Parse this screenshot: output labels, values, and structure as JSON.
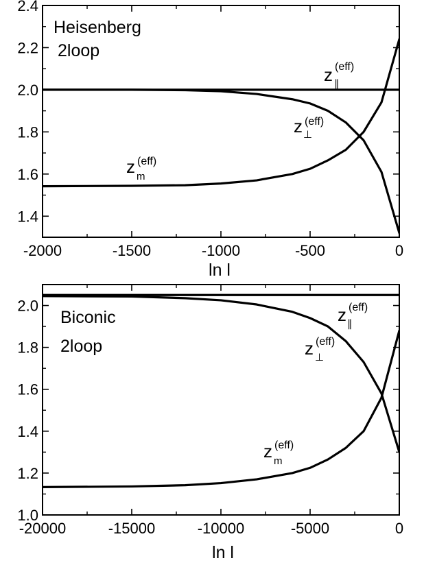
{
  "chart_data": [
    {
      "type": "line",
      "panel_text": [
        "Heisenberg",
        "2loop"
      ],
      "xlabel": "ln l",
      "ylabel": "",
      "xlim": [
        -2000,
        0
      ],
      "ylim": [
        1.3,
        2.4
      ],
      "x_ticks": [
        -2000,
        -1500,
        -1000,
        -500,
        0
      ],
      "x_tick_labels": [
        "-2000",
        "-1500",
        "-1000",
        "-500",
        "0"
      ],
      "y_ticks": [
        1.4,
        1.6,
        1.8,
        2.0,
        2.2,
        2.4
      ],
      "y_tick_labels": [
        "1.4",
        "1.6",
        "1.8",
        "2.0",
        "2.2",
        "2.4"
      ],
      "grid": false,
      "series": [
        {
          "name": "z_∥^(eff)",
          "x": [
            -2000,
            -1500,
            -1000,
            -500,
            0
          ],
          "y": [
            2.0,
            2.0,
            2.0,
            2.0,
            2.0
          ]
        },
        {
          "name": "z_⊥^(eff)",
          "x": [
            -2000,
            -1500,
            -1200,
            -1000,
            -800,
            -600,
            -500,
            -400,
            -300,
            -200,
            -100,
            0
          ],
          "y": [
            2.0,
            2.0,
            1.998,
            1.993,
            1.98,
            1.955,
            1.935,
            1.9,
            1.845,
            1.76,
            1.61,
            1.32
          ]
        },
        {
          "name": "z_m^(eff)",
          "x": [
            -2000,
            -1500,
            -1200,
            -1000,
            -800,
            -600,
            -500,
            -400,
            -300,
            -200,
            -100,
            0
          ],
          "y": [
            1.542,
            1.544,
            1.547,
            1.555,
            1.57,
            1.6,
            1.625,
            1.665,
            1.715,
            1.8,
            1.94,
            2.24
          ]
        }
      ],
      "annotations": [
        {
          "base": "z",
          "sup": "(eff)",
          "sub": "∥"
        },
        {
          "base": "z",
          "sup": "(eff)",
          "sub": "⊥"
        },
        {
          "base": "z",
          "sup": "(eff)",
          "sub": "m"
        }
      ]
    },
    {
      "type": "line",
      "panel_text": [
        "Biconic",
        "2loop"
      ],
      "xlabel": "ln l",
      "ylabel": "",
      "xlim": [
        -20000,
        0
      ],
      "ylim": [
        1.0,
        2.1
      ],
      "x_ticks": [
        -20000,
        -15000,
        -10000,
        -5000,
        0
      ],
      "x_tick_labels": [
        "-20000",
        "-15000",
        "-10000",
        "-5000",
        "0"
      ],
      "y_ticks": [
        1.0,
        1.2,
        1.4,
        1.6,
        1.8,
        2.0
      ],
      "y_tick_labels": [
        "1.0",
        "1.2",
        "1.4",
        "1.6",
        "1.8",
        "2.0"
      ],
      "grid": false,
      "series": [
        {
          "name": "z_∥^(eff)",
          "x": [
            -20000,
            -15000,
            -10000,
            -5000,
            0
          ],
          "y": [
            2.05,
            2.05,
            2.05,
            2.05,
            2.05
          ]
        },
        {
          "name": "z_⊥^(eff)",
          "x": [
            -20000,
            -15000,
            -12000,
            -10000,
            -8000,
            -6000,
            -5000,
            -4000,
            -3000,
            -2000,
            -1000,
            0
          ],
          "y": [
            2.045,
            2.043,
            2.035,
            2.025,
            2.005,
            1.97,
            1.94,
            1.9,
            1.83,
            1.73,
            1.58,
            1.3
          ]
        },
        {
          "name": "z_m^(eff)",
          "x": [
            -20000,
            -15000,
            -12000,
            -10000,
            -8000,
            -6000,
            -5000,
            -4000,
            -3000,
            -2000,
            -1000,
            0
          ],
          "y": [
            1.133,
            1.136,
            1.142,
            1.152,
            1.17,
            1.2,
            1.225,
            1.265,
            1.32,
            1.4,
            1.56,
            1.88
          ]
        }
      ],
      "annotations": [
        {
          "base": "z",
          "sup": "(eff)",
          "sub": "∥"
        },
        {
          "base": "z",
          "sup": "(eff)",
          "sub": "⊥"
        },
        {
          "base": "z",
          "sup": "(eff)",
          "sub": "m"
        }
      ]
    }
  ]
}
